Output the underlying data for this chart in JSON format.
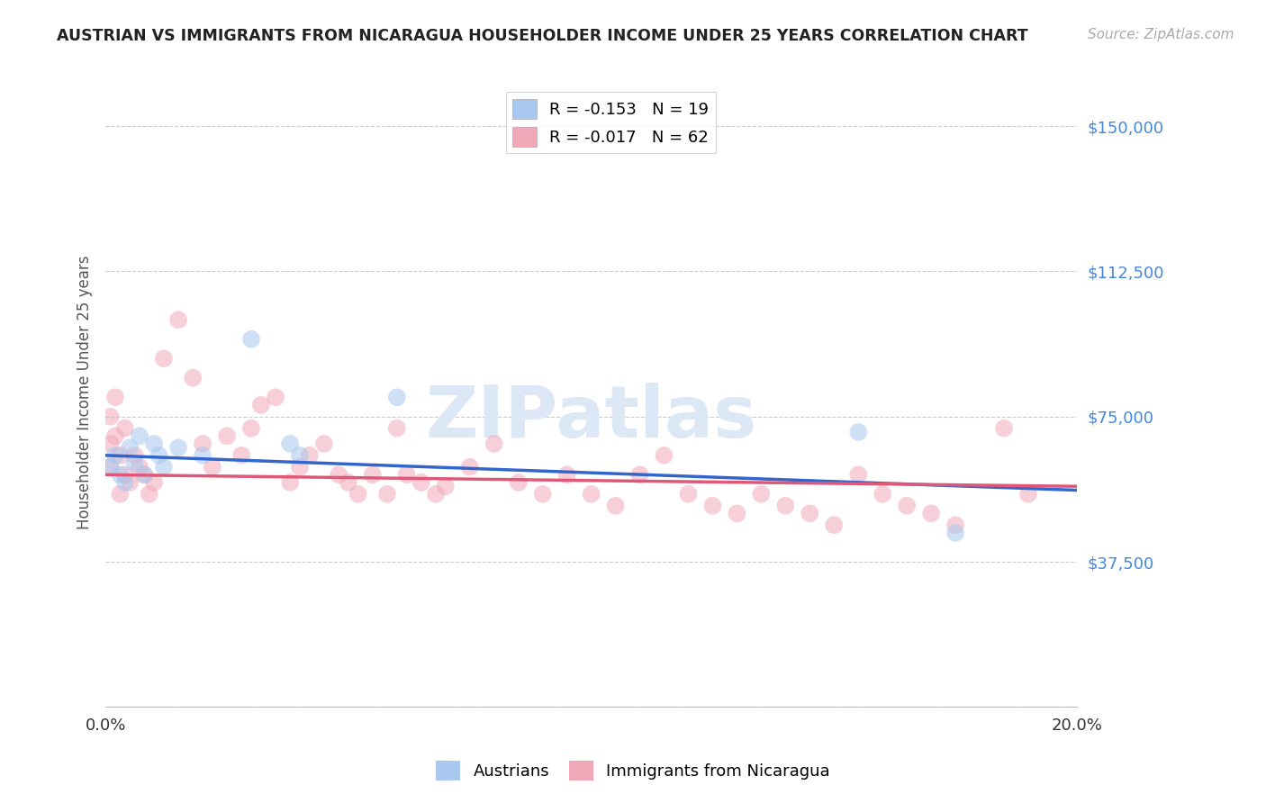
{
  "title": "AUSTRIAN VS IMMIGRANTS FROM NICARAGUA HOUSEHOLDER INCOME UNDER 25 YEARS CORRELATION CHART",
  "source": "Source: ZipAtlas.com",
  "ylabel": "Householder Income Under 25 years",
  "y_ticks": [
    0,
    37500,
    75000,
    112500,
    150000
  ],
  "y_tick_labels": [
    "",
    "$37,500",
    "$75,000",
    "$112,500",
    "$150,000"
  ],
  "xlim": [
    0.0,
    0.2
  ],
  "ylim": [
    0,
    162500
  ],
  "watermark": "ZIPatlas",
  "austrians": {
    "color": "#a8c8f0",
    "trend_color": "#3366cc",
    "trend_x0": 0.0,
    "trend_x1": 0.2,
    "trend_y0": 65000,
    "trend_y1": 56000,
    "x": [
      0.001,
      0.002,
      0.003,
      0.004,
      0.005,
      0.006,
      0.007,
      0.008,
      0.01,
      0.011,
      0.012,
      0.015,
      0.02,
      0.03,
      0.038,
      0.04,
      0.06,
      0.155,
      0.175
    ],
    "y": [
      62000,
      65000,
      60000,
      58000,
      67000,
      63000,
      70000,
      60000,
      68000,
      65000,
      62000,
      67000,
      65000,
      95000,
      68000,
      65000,
      80000,
      71000,
      45000
    ]
  },
  "nicaraguans": {
    "color": "#f0a8b8",
    "trend_color": "#e05878",
    "trend_x0": 0.0,
    "trend_x1": 0.2,
    "trend_y0": 60000,
    "trend_y1": 57000,
    "x": [
      0.001,
      0.001,
      0.001,
      0.002,
      0.002,
      0.003,
      0.003,
      0.004,
      0.004,
      0.005,
      0.006,
      0.007,
      0.008,
      0.009,
      0.01,
      0.012,
      0.015,
      0.018,
      0.02,
      0.022,
      0.025,
      0.028,
      0.03,
      0.032,
      0.035,
      0.038,
      0.04,
      0.042,
      0.045,
      0.048,
      0.05,
      0.052,
      0.055,
      0.058,
      0.06,
      0.062,
      0.065,
      0.068,
      0.07,
      0.075,
      0.08,
      0.085,
      0.09,
      0.095,
      0.1,
      0.105,
      0.11,
      0.115,
      0.12,
      0.125,
      0.13,
      0.135,
      0.14,
      0.145,
      0.15,
      0.155,
      0.16,
      0.165,
      0.17,
      0.175,
      0.185,
      0.19
    ],
    "y": [
      62000,
      68000,
      75000,
      70000,
      80000,
      65000,
      55000,
      72000,
      60000,
      58000,
      65000,
      62000,
      60000,
      55000,
      58000,
      90000,
      100000,
      85000,
      68000,
      62000,
      70000,
      65000,
      72000,
      78000,
      80000,
      58000,
      62000,
      65000,
      68000,
      60000,
      58000,
      55000,
      60000,
      55000,
      72000,
      60000,
      58000,
      55000,
      57000,
      62000,
      68000,
      58000,
      55000,
      60000,
      55000,
      52000,
      60000,
      65000,
      55000,
      52000,
      50000,
      55000,
      52000,
      50000,
      47000,
      60000,
      55000,
      52000,
      50000,
      47000,
      72000,
      55000
    ]
  },
  "legend_blue_label": "R = -0.153   N = 19",
  "legend_pink_label": "R = -0.017   N = 62",
  "bottom_legend_austrians": "Austrians",
  "bottom_legend_nicaraguans": "Immigrants from Nicaragua"
}
